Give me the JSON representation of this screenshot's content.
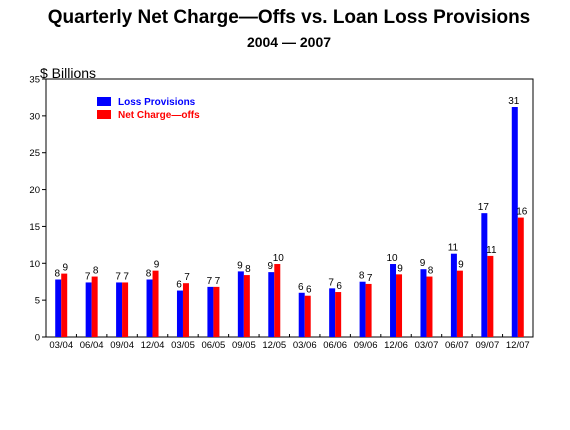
{
  "chart_data": {
    "type": "bar",
    "title": "Quarterly Net Charge—Offs vs. Loan Loss Provisions",
    "subtitle": "2004 — 2007",
    "ylabel": "$ Billions",
    "xlabel": "",
    "ylim": [
      0,
      35
    ],
    "yticks": [
      0,
      5,
      10,
      15,
      20,
      25,
      30,
      35
    ],
    "grid": false,
    "legend_position": "top-left",
    "categories": [
      "03/04",
      "06/04",
      "09/04",
      "12/04",
      "03/05",
      "06/05",
      "09/05",
      "12/05",
      "03/06",
      "06/06",
      "09/06",
      "12/06",
      "03/07",
      "06/07",
      "09/07",
      "12/07"
    ],
    "series": [
      {
        "name": "Loss Provisions",
        "color": "#0000ff",
        "values": [
          7.8,
          7.4,
          7.4,
          7.8,
          6.3,
          6.8,
          8.9,
          8.8,
          6.0,
          6.6,
          7.5,
          9.9,
          9.2,
          11.3,
          16.8,
          31.2
        ],
        "labels": [
          "8",
          "7",
          "7",
          "8",
          "6",
          "7",
          "9",
          "9",
          "6",
          "7",
          "8",
          "10",
          "9",
          "11",
          "17",
          "31"
        ]
      },
      {
        "name": "Net Charge—offs",
        "color": "#ff0000",
        "values": [
          8.6,
          8.2,
          7.4,
          9.0,
          7.3,
          6.8,
          8.4,
          9.9,
          5.6,
          6.1,
          7.2,
          8.5,
          8.2,
          9.0,
          11.0,
          16.2
        ],
        "labels": [
          "9",
          "8",
          "7",
          "9",
          "7",
          "7",
          "8",
          "10",
          "6",
          "6",
          "7",
          "9",
          "8",
          "9",
          "11",
          "16"
        ]
      }
    ]
  }
}
